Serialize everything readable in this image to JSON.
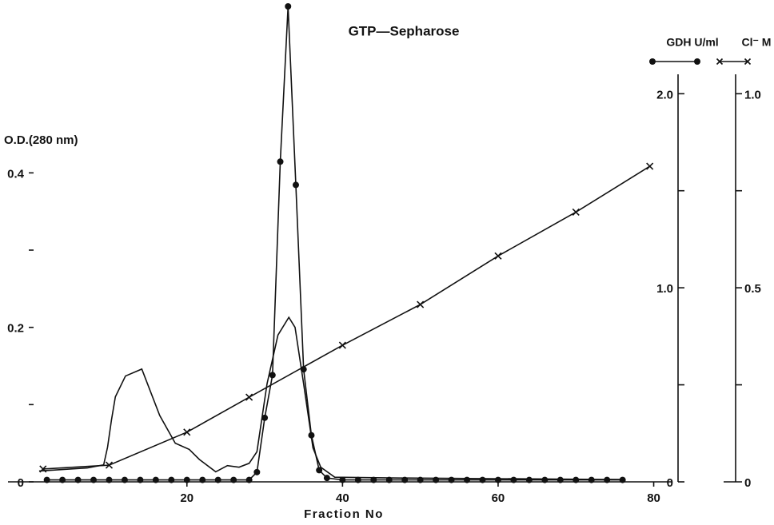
{
  "chart_data": {
    "type": "line",
    "title": "GTP—Sepharose",
    "xlabel": "Fraction No",
    "ylabel": "O.D.(280 nm)",
    "xlim": [
      -3,
      82
    ],
    "xticks": [
      20,
      40,
      60,
      80
    ],
    "ylim": [
      0,
      0.45
    ],
    "yticks": [
      0,
      0.2,
      0.4
    ],
    "yminorticks": [
      0.1,
      0.3
    ],
    "y2lim": [
      0,
      2.1
    ],
    "y2ticks": [
      0,
      {
        "value": 1,
        "label": "1.0"
      },
      {
        "value": 2,
        "label": "2.0"
      }
    ],
    "y2minorticks": [
      0.5,
      1.5
    ],
    "y3lim": [
      0,
      1.05
    ],
    "y3ticks": [
      0,
      0.5,
      {
        "value": 1,
        "label": "1.0"
      }
    ],
    "y3minorticks": [
      0.25,
      0.75
    ],
    "series": [
      {
        "axis": "y",
        "color": "#111111",
        "marker": "none",
        "x": [
          1,
          7.2,
          8.2,
          9.3,
          9.8,
          10.3,
          10.8,
          12.1,
          14.2,
          16.5,
          18.5,
          20.3,
          21.6,
          23.7,
          25.2,
          26.7,
          28,
          29,
          30.3,
          31.7,
          33.1,
          33.9,
          35,
          36.2,
          37.2,
          39,
          47.3,
          76
        ],
        "values": [
          0.014,
          0.018,
          0.02,
          0.022,
          0.045,
          0.08,
          0.11,
          0.137,
          0.146,
          0.086,
          0.05,
          0.042,
          0.029,
          0.013,
          0.021,
          0.019,
          0.024,
          0.039,
          0.127,
          0.19,
          0.213,
          0.2,
          0.127,
          0.044,
          0.019,
          0.006,
          0.005,
          0.003
        ]
      },
      {
        "name": "GDH U/ml",
        "axis": "y2",
        "color": "#111111",
        "marker": "dot",
        "x": [
          2,
          4,
          6,
          8,
          10,
          12,
          14,
          16,
          18,
          20,
          22,
          24,
          26,
          28,
          29,
          30,
          31,
          32,
          33,
          34,
          35,
          36,
          37,
          38,
          40,
          42,
          44,
          46,
          48,
          50,
          52,
          54,
          56,
          58,
          60,
          62,
          64,
          66,
          68,
          70,
          72,
          74,
          76
        ],
        "values": [
          0.01,
          0.01,
          0.01,
          0.01,
          0.01,
          0.01,
          0.01,
          0.01,
          0.01,
          0.01,
          0.01,
          0.01,
          0.01,
          0.01,
          0.05,
          0.33,
          0.55,
          1.65,
          2.45,
          1.53,
          0.58,
          0.24,
          0.06,
          0.02,
          0.01,
          0.01,
          0.01,
          0.01,
          0.01,
          0.01,
          0.01,
          0.01,
          0.01,
          0.01,
          0.01,
          0.01,
          0.01,
          0.01,
          0.01,
          0.01,
          0.01,
          0.01,
          0.01
        ]
      },
      {
        "name": "Cl⁻ M",
        "axis": "y3",
        "color": "#111111",
        "marker": "cross",
        "x": [
          1.5,
          10,
          20,
          28,
          40,
          50,
          60,
          70,
          79.5
        ],
        "values": [
          0.033,
          0.043,
          0.128,
          0.218,
          0.352,
          0.457,
          0.582,
          0.695,
          0.813
        ]
      }
    ]
  }
}
